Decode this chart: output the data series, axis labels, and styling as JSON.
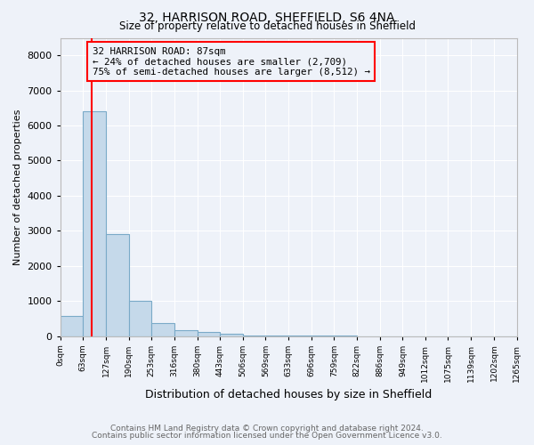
{
  "title": "32, HARRISON ROAD, SHEFFIELD, S6 4NA",
  "subtitle": "Size of property relative to detached houses in Sheffield",
  "xlabel": "Distribution of detached houses by size in Sheffield",
  "ylabel": "Number of detached properties",
  "bar_color": "#c5d9ea",
  "bar_edge_color": "#7aaac8",
  "background_color": "#eef2f9",
  "grid_color": "white",
  "bin_edges": [
    0,
    63,
    127,
    190,
    253,
    316,
    380,
    443,
    506,
    569,
    633,
    696,
    759,
    822,
    886,
    949,
    1012,
    1075,
    1139,
    1202,
    1265
  ],
  "bar_heights": [
    570,
    6400,
    2900,
    1000,
    370,
    160,
    110,
    60,
    10,
    5,
    2,
    1,
    1,
    0,
    0,
    0,
    0,
    0,
    0,
    0
  ],
  "xlabels": [
    "0sqm",
    "63sqm",
    "127sqm",
    "190sqm",
    "253sqm",
    "316sqm",
    "380sqm",
    "443sqm",
    "506sqm",
    "569sqm",
    "633sqm",
    "696sqm",
    "759sqm",
    "822sqm",
    "886sqm",
    "949sqm",
    "1012sqm",
    "1075sqm",
    "1139sqm",
    "1202sqm",
    "1265sqm"
  ],
  "ylim": [
    0,
    8500
  ],
  "yticks": [
    0,
    1000,
    2000,
    3000,
    4000,
    5000,
    6000,
    7000,
    8000
  ],
  "property_line_x": 87,
  "annotation_line1": "32 HARRISON ROAD: 87sqm",
  "annotation_line2": "← 24% of detached houses are smaller (2,709)",
  "annotation_line3": "75% of semi-detached houses are larger (8,512) →",
  "footer1": "Contains HM Land Registry data © Crown copyright and database right 2024.",
  "footer2": "Contains public sector information licensed under the Open Government Licence v3.0."
}
